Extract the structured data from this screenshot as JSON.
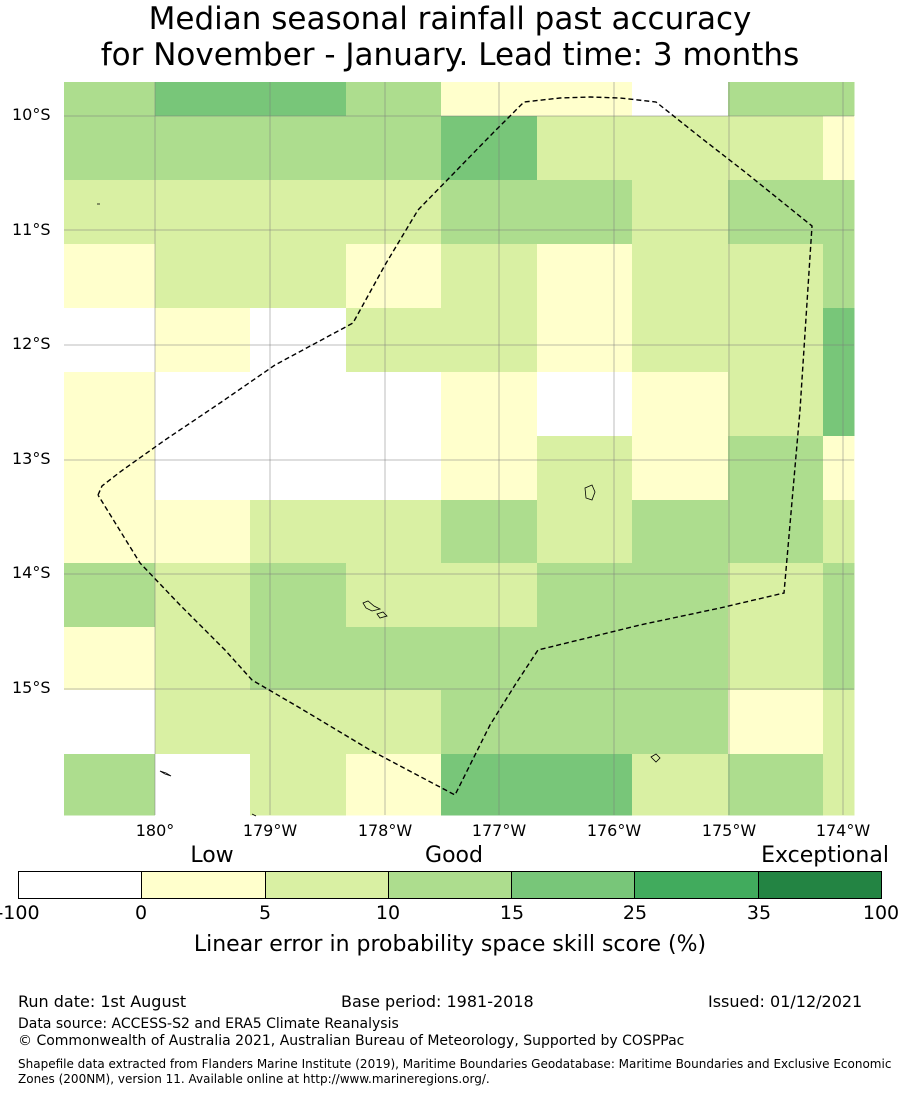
{
  "title": {
    "line1": "Median seasonal rainfall past accuracy",
    "line2": "for November - January. Lead time: 3 months"
  },
  "map": {
    "lat_labels": [
      "10°S",
      "11°S",
      "12°S",
      "13°S",
      "14°S",
      "15°S"
    ],
    "lon_labels": [
      "180°",
      "179°W",
      "178°W",
      "177°W",
      "176°W",
      "175°W",
      "174°W"
    ],
    "grid_categories": [
      [
        3,
        4,
        4,
        3,
        1,
        1,
        0,
        3,
        3
      ],
      [
        3,
        3,
        3,
        3,
        4,
        2,
        2,
        2,
        1
      ],
      [
        2,
        2,
        2,
        2,
        3,
        3,
        2,
        3,
        3
      ],
      [
        1,
        2,
        2,
        1,
        2,
        1,
        2,
        2,
        3
      ],
      [
        0,
        1,
        0,
        2,
        2,
        1,
        2,
        2,
        4
      ],
      [
        1,
        0,
        0,
        0,
        1,
        0,
        1,
        2,
        4
      ],
      [
        1,
        0,
        0,
        0,
        1,
        2,
        1,
        3,
        1
      ],
      [
        1,
        1,
        2,
        2,
        3,
        2,
        3,
        3,
        2
      ],
      [
        3,
        2,
        3,
        2,
        2,
        3,
        3,
        2,
        3
      ],
      [
        1,
        2,
        3,
        3,
        3,
        3,
        3,
        2,
        3
      ],
      [
        0,
        2,
        2,
        2,
        3,
        3,
        3,
        1,
        2
      ],
      [
        3,
        0,
        2,
        1,
        4,
        4,
        2,
        3,
        2
      ]
    ],
    "colors": [
      "#ffffff",
      "#ffffcc",
      "#d9f0a3",
      "#addd8e",
      "#78c679",
      "#41ab5d",
      "#238443"
    ]
  },
  "legend": {
    "categories": [
      "Low",
      "Good",
      "Exceptional"
    ],
    "ticks": [
      "-100",
      "0",
      "5",
      "10",
      "15",
      "25",
      "35",
      "100"
    ],
    "title": "Linear error in probability space skill score (%)"
  },
  "footer": {
    "run_date": "Run date: 1st August",
    "base_period": "Base period: 1981-2018",
    "issued": "Issued: 01/12/2021",
    "data_source": "Data source: ACCESS-S2 and ERA5 Climate Reanalysis",
    "copyright": "© Commonwealth of Australia 2021, Australian Bureau of Meteorology, Supported by COSPPac",
    "shapefile": "Shapefile data extracted from Flanders Marine Institute (2019), Maritime Boundaries Geodatabase: Maritime Boundaries and Exclusive Economic Zones (200NM), version 11. Available online at http://www.marineregions.org/."
  }
}
